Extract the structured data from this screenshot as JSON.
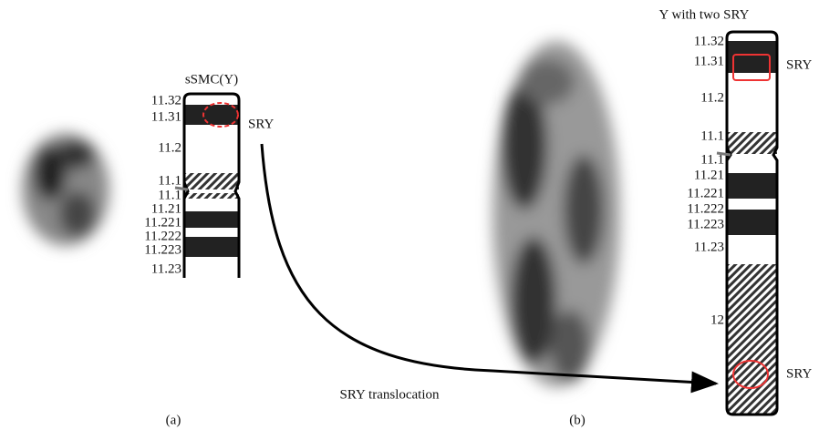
{
  "panel_a": {
    "title": "sSMC(Y)",
    "label": "(a)",
    "marker": "SRY",
    "bands": [
      "11.32",
      "11.31",
      "11.2",
      "11.1",
      "11.1",
      "11.21",
      "11.221",
      "11.222",
      "11.223",
      "11.23"
    ]
  },
  "panel_b": {
    "title": "Y with two SRY",
    "label": "(b)",
    "markers": [
      "SRY",
      "SRY"
    ],
    "bands": [
      "11.32",
      "11.31",
      "11.2",
      "11.1",
      "11.1",
      "11.21",
      "11.221",
      "11.222",
      "11.223",
      "11.23",
      "12"
    ]
  },
  "arrow_label": "SRY translocation"
}
